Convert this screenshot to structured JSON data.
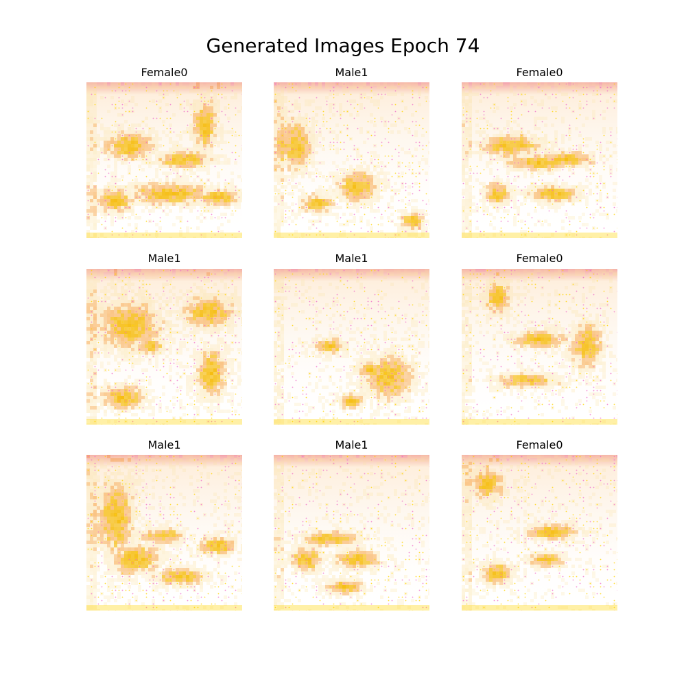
{
  "figure": {
    "title": "Generated Images Epoch 74"
  },
  "panels": [
    {
      "label": "Female0"
    },
    {
      "label": "Male1"
    },
    {
      "label": "Female0"
    },
    {
      "label": "Male1"
    },
    {
      "label": "Male1"
    },
    {
      "label": "Female0"
    },
    {
      "label": "Male1"
    },
    {
      "label": "Male1"
    },
    {
      "label": "Female0"
    }
  ],
  "colors": {
    "background": "#ffffff",
    "blob_dark": "#f5b800",
    "blob_light": "#fbe3a3",
    "orange_tint": "#f7a544",
    "pink_dot": "#f06ec8",
    "red_edge": "#e8506a",
    "yellow_dot": "#ffd400"
  }
}
